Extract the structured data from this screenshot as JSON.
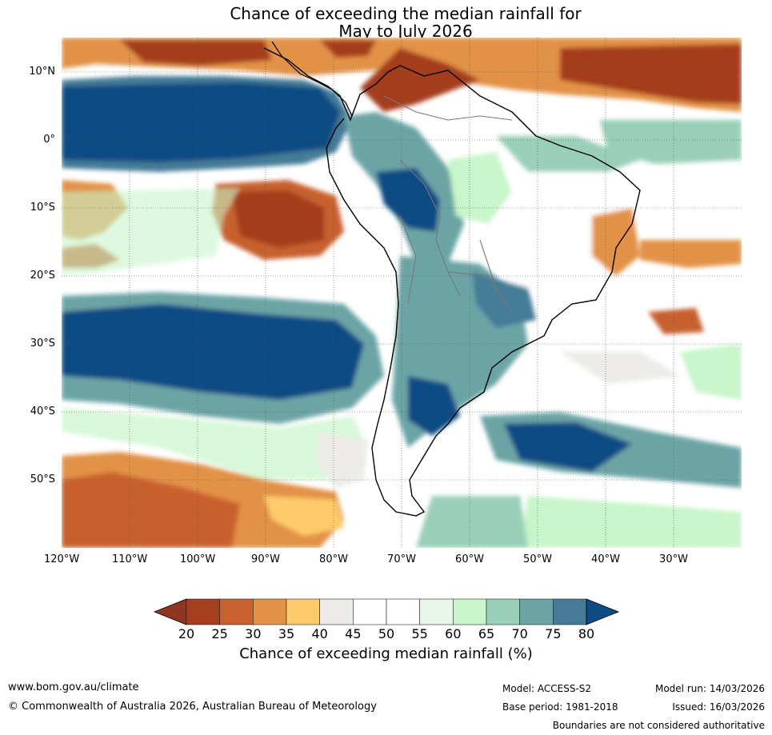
{
  "title": {
    "line1": "Chance of exceeding the median rainfall for",
    "line2": "May to July 2026"
  },
  "map": {
    "lat_labels": [
      "10°N",
      "0°",
      "10°S",
      "20°S",
      "30°S",
      "40°S",
      "50°S"
    ],
    "lon_labels": [
      "120°W",
      "110°W",
      "100°W",
      "90°W",
      "80°W",
      "70°W",
      "60°W",
      "50°W",
      "40°W",
      "30°W"
    ],
    "extent": {
      "lon_min": -120,
      "lon_max": -20,
      "lat_min": -60,
      "lat_max": 15
    }
  },
  "colorbar": {
    "ticks": [
      "20",
      "25",
      "30",
      "35",
      "40",
      "45",
      "50",
      "55",
      "60",
      "65",
      "70",
      "75",
      "80"
    ],
    "label": "Chance of exceeding median rainfall (%)",
    "colors": [
      "#a53d1f",
      "#c8602f",
      "#e29246",
      "#fdcb6b",
      "#ecebe7",
      "#ffffff",
      "#ffffff",
      "#e8f5e9",
      "#c8f5c9",
      "#99cfb8",
      "#6ca4a6",
      "#457b97",
      "#0f4b84"
    ],
    "under_color": "#8f3521",
    "over_color": "#0e4a83"
  },
  "footer": {
    "website": "www.bom.gov.au/climate",
    "copyright": "© Commonwealth of Australia 2026, Australian Bureau of Meteorology",
    "model": "Model: ACCESS-S2",
    "base_period": "Base period: 1981-2018",
    "model_run": "Model run: 14/03/2026",
    "issued": "Issued: 16/03/2026",
    "boundaries_note": "Boundaries are not considered authoritative"
  }
}
